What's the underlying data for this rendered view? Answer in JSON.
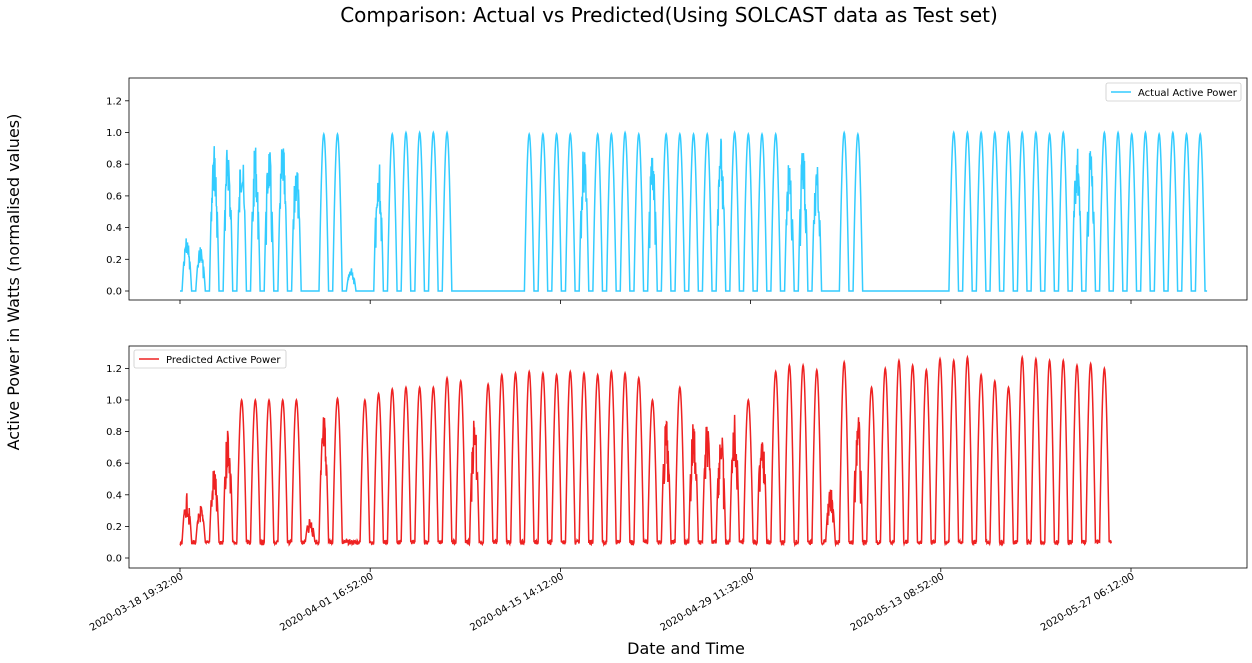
{
  "title": "Comparison: Actual vs Predicted(Using SOLCAST data as Test set)",
  "xlabel": "Date and Time",
  "ylabel": "Active Power in Watts (normalised values)",
  "chart_data": [
    {
      "type": "line",
      "series_name": "Actual Active Power",
      "color": "#33ccff",
      "ylim": [
        -0.08,
        1.35
      ],
      "yticks": [
        "0.0",
        "0.2",
        "0.4",
        "0.6",
        "0.8",
        "1.0",
        "1.2"
      ],
      "legend_position": "upper right",
      "day_peaks": [
        0.35,
        0.29,
        0.94,
        0.96,
        0.95,
        0.94,
        0.94,
        0.97,
        0.85,
        0.0,
        0.99,
        0.99,
        0.15,
        0.0,
        0.87,
        0.99,
        1.0,
        1.0,
        1.0,
        1.0,
        0.0,
        0.0,
        0.0,
        0.0,
        0.0,
        0.99,
        0.99,
        0.99,
        0.99,
        0.95,
        0.99,
        0.99,
        1.0,
        0.99,
        0.94,
        0.99,
        0.99,
        0.99,
        0.99,
        0.97,
        1.0,
        0.99,
        0.99,
        0.99,
        0.85,
        0.97,
        0.84,
        0.0,
        1.0,
        0.99,
        0.0,
        0.0,
        0.0,
        0.0,
        0.0,
        0.0,
        1.0,
        1.0,
        1.0,
        1.0,
        1.0,
        1.0,
        1.0,
        0.99,
        1.0,
        0.95,
        0.94,
        1.0,
        1.0,
        0.99,
        1.0,
        0.99,
        1.0,
        0.99,
        0.99
      ],
      "night_value": 0.0
    },
    {
      "type": "line",
      "series_name": "Predicted Active Power",
      "color": "#ee2222",
      "ylim": [
        -0.07,
        1.33
      ],
      "yticks": [
        "0.0",
        "0.2",
        "0.4",
        "0.6",
        "0.8",
        "1.0",
        "1.2"
      ],
      "legend_position": "upper left",
      "day_peaks": [
        0.41,
        0.34,
        0.6,
        0.88,
        1.0,
        1.0,
        1.0,
        1.0,
        1.0,
        0.27,
        0.93,
        1.01,
        0.0,
        1.0,
        1.04,
        1.07,
        1.08,
        1.08,
        1.08,
        1.14,
        1.12,
        0.92,
        1.1,
        1.16,
        1.17,
        1.18,
        1.17,
        1.16,
        1.18,
        1.17,
        1.16,
        1.18,
        1.17,
        1.14,
        1.0,
        0.9,
        1.08,
        0.91,
        0.88,
        0.86,
        0.94,
        1.0,
        0.91,
        1.18,
        1.22,
        1.22,
        1.19,
        0.45,
        1.24,
        0.95,
        1.08,
        1.2,
        1.25,
        1.22,
        1.19,
        1.26,
        1.25,
        1.27,
        1.16,
        1.12,
        1.08,
        1.27,
        1.26,
        1.25,
        1.25,
        1.22,
        1.23,
        1.2
      ],
      "night_value": 0.1
    }
  ],
  "x_axis": {
    "range": [
      "2020-03-18 19:32:00",
      "2020-06-04 12:00:00"
    ],
    "tick_labels": [
      "2020-03-18 19:32:00",
      "2020-04-01 16:52:00",
      "2020-04-15 14:12:00",
      "2020-04-29 11:32:00",
      "2020-05-13 08:52:00",
      "2020-05-27 06:12:00"
    ]
  }
}
